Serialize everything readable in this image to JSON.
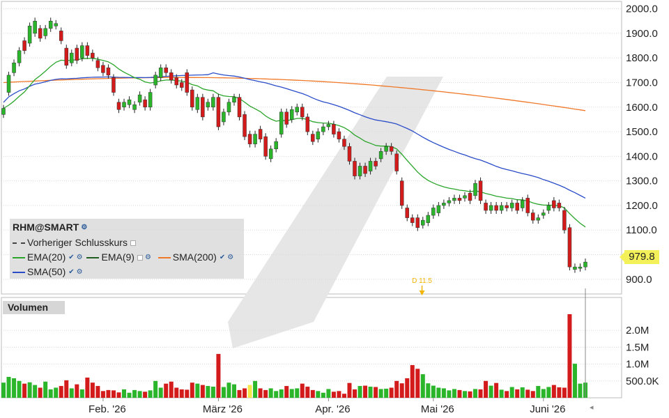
{
  "chart_data": [
    {
      "type": "candlestick",
      "ticker": "RHM@SMART",
      "y_ticks": [
        "2000.0",
        "1900.0",
        "1800.0",
        "1700.0",
        "1600.0",
        "1500.0",
        "1400.0",
        "1300.0",
        "1200.0",
        "1100.0",
        "1000.0",
        "900.0"
      ],
      "ylim": [
        840,
        2030
      ],
      "x_ticks": [
        "Feb. '26",
        "März '26",
        "Apr. '26",
        "Mai '26",
        "Juni '26"
      ],
      "last_price": "979.8",
      "legend": [
        {
          "name": "Vorheriger Schlusskurs",
          "color": "#444444",
          "style": "dashed"
        },
        {
          "name": "EMA(20)",
          "color": "#2aa52a"
        },
        {
          "name": "EMA(9)",
          "color": "#1f5e1f"
        },
        {
          "name": "SMA(200)",
          "color": "#f07828"
        },
        {
          "name": "SMA(50)",
          "color": "#2a4cc8"
        }
      ],
      "annotation": {
        "text": "D 11.5",
        "color": "#f5b400"
      },
      "candles": [
        [
          1570,
          1595
        ],
        [
          1660,
          1730
        ],
        [
          1740,
          1780
        ],
        [
          1780,
          1830
        ],
        [
          1870,
          1830
        ],
        [
          1860,
          1930
        ],
        [
          1900,
          1950
        ],
        [
          1920,
          1880
        ],
        [
          1890,
          1920
        ],
        [
          1920,
          1950
        ],
        [
          1930,
          1940
        ],
        [
          1910,
          1870
        ],
        [
          1840,
          1770
        ],
        [
          1780,
          1820
        ],
        [
          1840,
          1790
        ],
        [
          1800,
          1850
        ],
        [
          1850,
          1810
        ],
        [
          1820,
          1800
        ],
        [
          1790,
          1760
        ],
        [
          1770,
          1740
        ],
        [
          1760,
          1730
        ],
        [
          1720,
          1660
        ],
        [
          1620,
          1590
        ],
        [
          1600,
          1620
        ],
        [
          1610,
          1630
        ],
        [
          1590,
          1610
        ],
        [
          1620,
          1650
        ],
        [
          1630,
          1600
        ],
        [
          1600,
          1660
        ],
        [
          1690,
          1730
        ],
        [
          1720,
          1760
        ],
        [
          1760,
          1740
        ],
        [
          1740,
          1710
        ],
        [
          1720,
          1690
        ],
        [
          1700,
          1680
        ],
        [
          1740,
          1660
        ],
        [
          1670,
          1600
        ],
        [
          1590,
          1640
        ],
        [
          1640,
          1560
        ],
        [
          1600,
          1620
        ],
        [
          1600,
          1640
        ],
        [
          1640,
          1520
        ],
        [
          1540,
          1580
        ],
        [
          1580,
          1620
        ],
        [
          1620,
          1640
        ],
        [
          1640,
          1560
        ],
        [
          1570,
          1480
        ],
        [
          1490,
          1450
        ],
        [
          1450,
          1490
        ],
        [
          1510,
          1470
        ],
        [
          1480,
          1400
        ],
        [
          1390,
          1430
        ],
        [
          1430,
          1460
        ],
        [
          1490,
          1580
        ],
        [
          1580,
          1530
        ],
        [
          1550,
          1590
        ],
        [
          1580,
          1600
        ],
        [
          1600,
          1560
        ],
        [
          1560,
          1500
        ],
        [
          1490,
          1460
        ],
        [
          1470,
          1500
        ],
        [
          1500,
          1520
        ],
        [
          1520,
          1530
        ],
        [
          1530,
          1490
        ],
        [
          1500,
          1470
        ],
        [
          1470,
          1440
        ],
        [
          1440,
          1380
        ],
        [
          1380,
          1320
        ],
        [
          1320,
          1360
        ],
        [
          1360,
          1330
        ],
        [
          1340,
          1380
        ],
        [
          1380,
          1360
        ],
        [
          1390,
          1420
        ],
        [
          1420,
          1440
        ],
        [
          1440,
          1420
        ],
        [
          1410,
          1340
        ],
        [
          1300,
          1200
        ],
        [
          1190,
          1150
        ],
        [
          1150,
          1130
        ],
        [
          1150,
          1110
        ],
        [
          1120,
          1140
        ],
        [
          1130,
          1160
        ],
        [
          1160,
          1190
        ],
        [
          1170,
          1200
        ],
        [
          1200,
          1210
        ],
        [
          1210,
          1220
        ],
        [
          1220,
          1230
        ],
        [
          1230,
          1220
        ],
        [
          1230,
          1240
        ],
        [
          1250,
          1220
        ],
        [
          1240,
          1290
        ],
        [
          1300,
          1220
        ],
        [
          1210,
          1180
        ],
        [
          1180,
          1200
        ],
        [
          1200,
          1180
        ],
        [
          1180,
          1200
        ],
        [
          1200,
          1190
        ],
        [
          1190,
          1210
        ],
        [
          1210,
          1180
        ],
        [
          1190,
          1220
        ],
        [
          1230,
          1170
        ],
        [
          1170,
          1140
        ],
        [
          1140,
          1150
        ],
        [
          1160,
          1170
        ],
        [
          1180,
          1200
        ],
        [
          1220,
          1190
        ],
        [
          1210,
          1190
        ],
        [
          1180,
          1100
        ],
        [
          1110,
          950
        ],
        [
          940,
          950
        ],
        [
          945,
          950
        ],
        [
          950,
          970
        ]
      ],
      "volume": {
        "y_ticks": [
          "2.0M",
          "1.5M",
          "1.0M",
          "500.0K"
        ],
        "ylim": [
          0,
          2500000
        ],
        "values": [
          450000,
          620000,
          580000,
          500000,
          420000,
          460000,
          380000,
          300000,
          480000,
          250000,
          300000,
          350000,
          520000,
          280000,
          400000,
          250000,
          600000,
          450000,
          350000,
          200000,
          230000,
          220000,
          160000,
          250000,
          150000,
          230000,
          200000,
          180000,
          220000,
          500000,
          300000,
          420000,
          480000,
          300000,
          250000,
          240000,
          450000,
          420000,
          380000,
          350000,
          330000,
          1300000,
          320000,
          450000,
          400000,
          230000,
          280000,
          380000,
          500000,
          280000,
          230000,
          280000,
          200000,
          250000,
          350000,
          260000,
          280000,
          420000,
          330000,
          230000,
          200000,
          150000,
          260000,
          180000,
          200000,
          120000,
          440000,
          250000,
          350000,
          360000,
          330000,
          320000,
          260000,
          270000,
          300000,
          500000,
          430000,
          580000,
          970000,
          860000,
          700000,
          430000,
          360000,
          300000,
          280000,
          220000,
          260000,
          230000,
          200000,
          190000,
          260000,
          250000,
          500000,
          360000,
          440000,
          240000,
          200000,
          320000,
          250000,
          310000,
          240000,
          200000,
          350000,
          260000,
          320000,
          380000,
          310000,
          300000,
          2480000,
          1010000,
          420000,
          450000
        ]
      }
    }
  ],
  "footer_marker": "◂"
}
